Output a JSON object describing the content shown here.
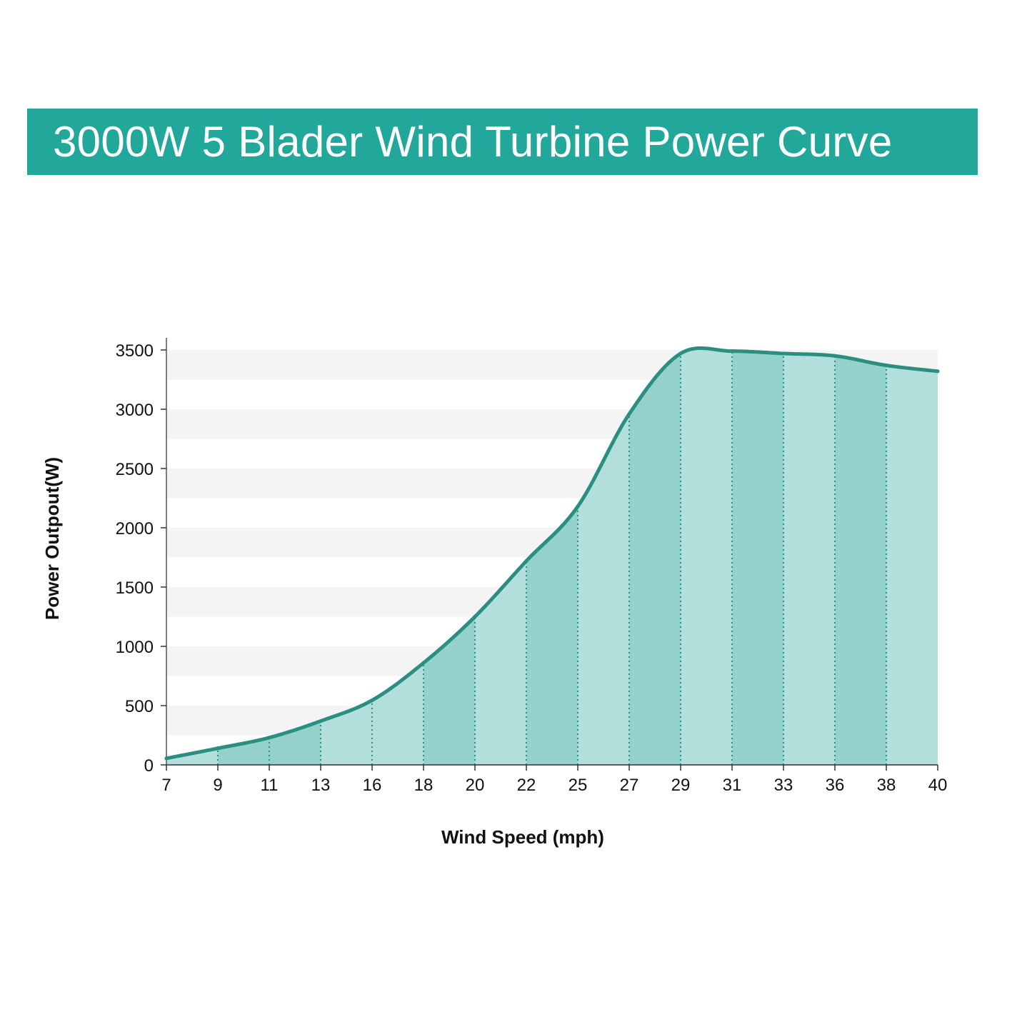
{
  "title": "3000W 5 Blader Wind Turbine Power Curve",
  "colors": {
    "banner": "#21a89b",
    "line": "#2a8f80",
    "fill_light": "#b2dedb",
    "fill_dark": "#93d1ca",
    "divider": "#2a8f80",
    "band_gray": "#f4f4f4"
  },
  "chart_data": {
    "type": "area",
    "title": "",
    "xlabel": "Wind Speed (mph)",
    "ylabel": "Power Outpout(W)",
    "x_ticks": [
      "7",
      "9",
      "11",
      "13",
      "16",
      "18",
      "20",
      "22",
      "25",
      "27",
      "29",
      "31",
      "33",
      "36",
      "38",
      "40"
    ],
    "y_ticks": [
      "0",
      "500",
      "1000",
      "1500",
      "2000",
      "2500",
      "3000",
      "3500"
    ],
    "ylim": [
      0,
      3600
    ],
    "grid": "horizontal bands",
    "legend": "none",
    "series": [
      {
        "values": [
          55,
          140,
          230,
          370,
          545,
          860,
          1250,
          1720,
          2180,
          2960,
          3470,
          3490,
          3470,
          3450,
          3370,
          3320
        ]
      }
    ]
  }
}
